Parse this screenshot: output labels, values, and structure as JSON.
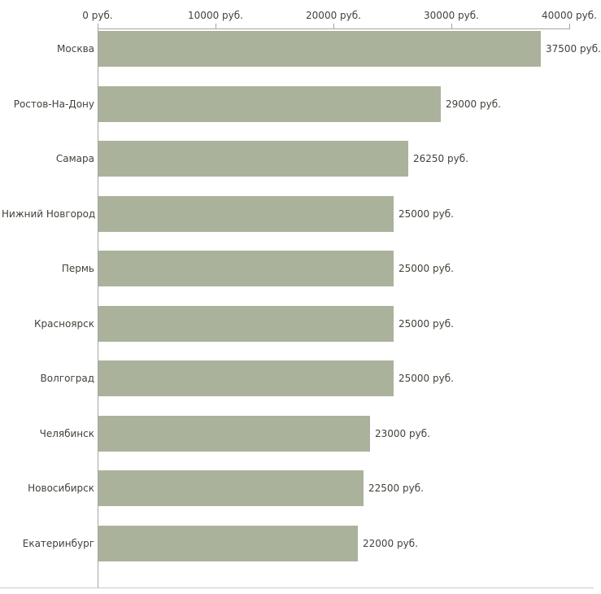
{
  "chart_data": {
    "type": "bar",
    "orientation": "horizontal",
    "title": "",
    "xlabel": "",
    "ylabel": "",
    "categories": [
      "Москва",
      "Ростов-На-Дону",
      "Самара",
      "Нижний Новгород",
      "Пермь",
      "Красноярск",
      "Волгоград",
      "Челябинск",
      "Новосибирск",
      "Екатеринбург"
    ],
    "values": [
      37500,
      29000,
      26250,
      25000,
      25000,
      25000,
      25000,
      23000,
      22500,
      22000
    ],
    "value_labels": [
      "37500 руб.",
      "29000 руб.",
      "26250 руб.",
      "25000 руб.",
      "25000 руб.",
      "25000 руб.",
      "25000 руб.",
      "23000 руб.",
      "22500 руб.",
      "22000 руб."
    ],
    "x_ticks": [
      "0 руб.",
      "10000 руб.",
      "20000 руб.",
      "30000 руб.",
      "40000 руб."
    ],
    "x_tick_values": [
      0,
      10000,
      20000,
      30000,
      40000
    ],
    "xlim": [
      0,
      40000
    ],
    "grid": false,
    "legend": false,
    "bar_color": "#abb29b",
    "axis_color": "#a6a6a6",
    "text_color": "#3c4438"
  }
}
